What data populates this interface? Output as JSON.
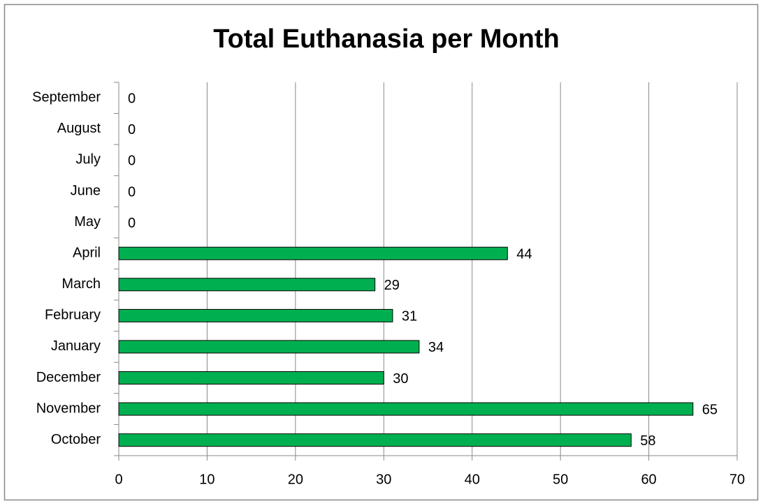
{
  "chart_data": {
    "type": "bar",
    "orientation": "horizontal",
    "title": "Total Euthanasia per Month",
    "categories": [
      "October",
      "November",
      "December",
      "January",
      "February",
      "March",
      "April",
      "May",
      "June",
      "July",
      "August",
      "September"
    ],
    "values": [
      58,
      65,
      30,
      34,
      31,
      29,
      44,
      0,
      0,
      0,
      0,
      0
    ],
    "color": "#00b050",
    "xlim": [
      0,
      70
    ],
    "xticks": [
      0,
      10,
      20,
      30,
      40,
      50,
      60,
      70
    ],
    "grid": true
  }
}
